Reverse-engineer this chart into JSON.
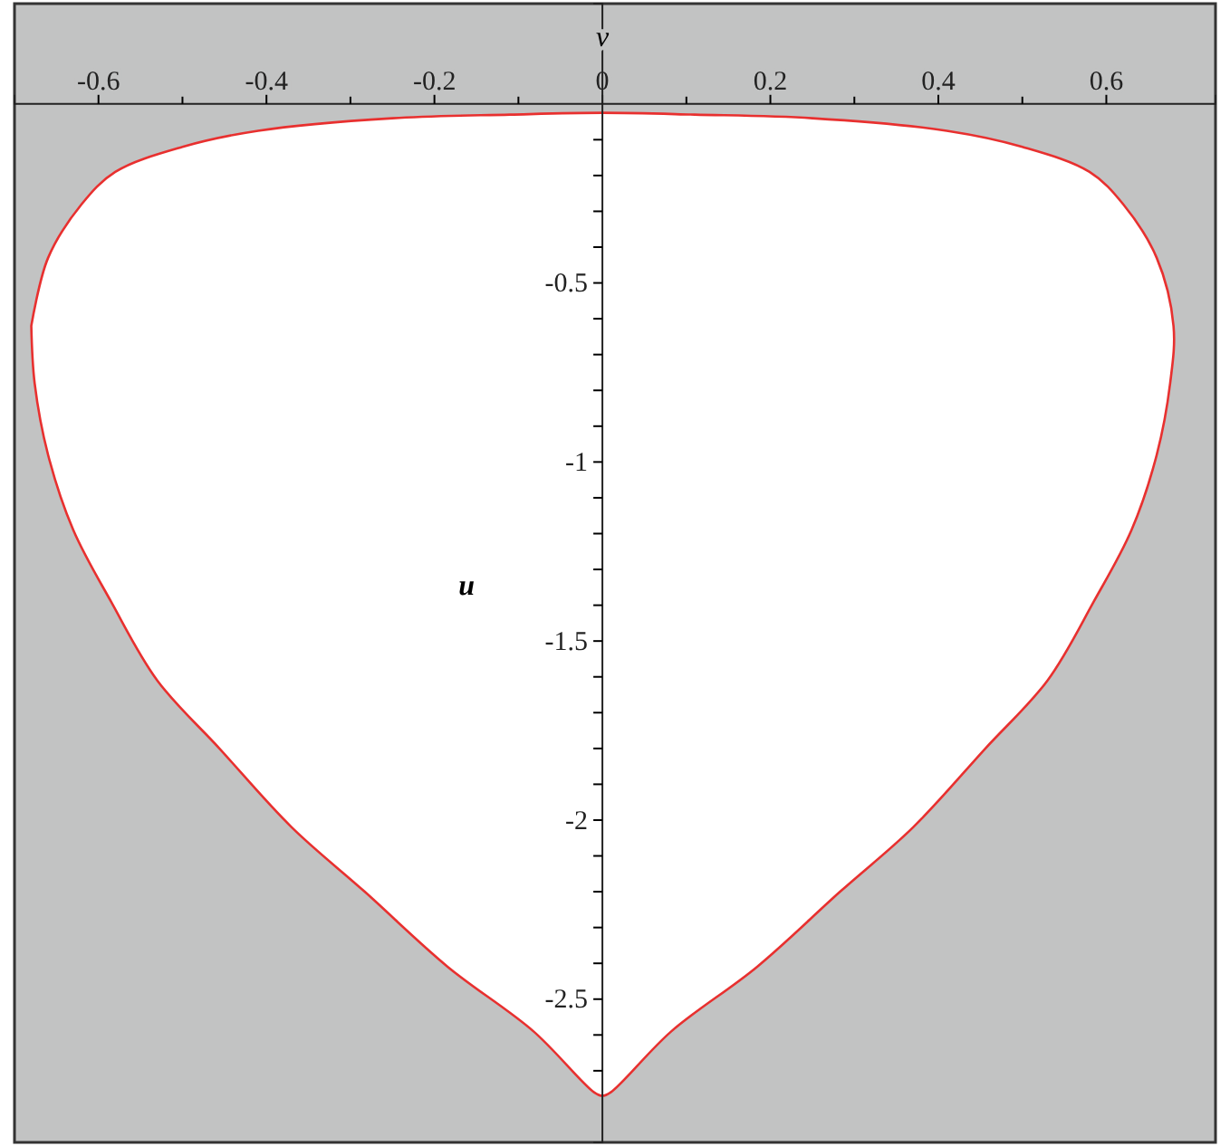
{
  "chart_data": {
    "type": "area",
    "xlabel": "v",
    "ylabel": "u",
    "xlim": [
      -0.7,
      0.73
    ],
    "ylim": [
      -2.9,
      0.28
    ],
    "xticks": [
      -0.6,
      {
        "value": -0.5,
        "label": null
      },
      -0.4,
      {
        "value": -0.3,
        "label": null
      },
      -0.2,
      {
        "value": -0.1,
        "label": null
      },
      0,
      {
        "value": 0.1,
        "label": null
      },
      0.2,
      {
        "value": 0.3,
        "label": null
      },
      0.4,
      {
        "value": 0.5,
        "label": null
      },
      0.6
    ],
    "yticks": [
      {
        "value": -0.1,
        "label": null
      },
      {
        "value": -0.2,
        "label": null
      },
      {
        "value": -0.3,
        "label": null
      },
      {
        "value": -0.4,
        "label": null
      },
      -0.5,
      {
        "value": -0.6,
        "label": null
      },
      {
        "value": -0.7,
        "label": null
      },
      {
        "value": -0.8,
        "label": null
      },
      {
        "value": -0.9,
        "label": null
      },
      -1,
      {
        "value": -1.1,
        "label": null
      },
      {
        "value": -1.2,
        "label": null
      },
      {
        "value": -1.3,
        "label": null
      },
      {
        "value": -1.4,
        "label": null
      },
      -1.5,
      {
        "value": -1.6,
        "label": null
      },
      {
        "value": -1.7,
        "label": null
      },
      {
        "value": -1.8,
        "label": null
      },
      {
        "value": -1.9,
        "label": null
      },
      -2,
      {
        "value": -2.1,
        "label": null
      },
      {
        "value": -2.2,
        "label": null
      },
      {
        "value": -2.3,
        "label": null
      },
      {
        "value": -2.4,
        "label": null
      },
      -2.5,
      {
        "value": -2.6,
        "label": null
      },
      {
        "value": -2.7,
        "label": null
      }
    ],
    "series": [
      {
        "color": "#e8302f",
        "x": [
          -0.68,
          -0.66,
          -0.62,
          -0.58,
          -0.5,
          -0.41,
          -0.25,
          -0.11,
          0,
          0.11,
          0.25,
          0.41,
          0.5,
          0.58,
          0.62,
          0.66,
          0.68,
          0.676,
          0.66,
          0.63,
          0.585,
          0.53,
          0.456,
          0.37,
          0.283,
          0.184,
          0.082,
          0.01,
          0,
          -0.01,
          -0.082,
          -0.184,
          -0.283,
          -0.37,
          -0.456,
          -0.53,
          -0.585,
          -0.63,
          -0.66,
          -0.676,
          -0.68
        ],
        "values": [
          -0.62,
          -0.43,
          -0.28,
          -0.19,
          -0.12,
          -0.075,
          -0.04,
          -0.03,
          -0.025,
          -0.03,
          -0.04,
          -0.075,
          -0.12,
          -0.19,
          -0.28,
          -0.43,
          -0.62,
          -0.78,
          -0.98,
          -1.19,
          -1.39,
          -1.61,
          -1.8,
          -2.02,
          -2.2,
          -2.41,
          -2.59,
          -2.76,
          -2.77,
          -2.76,
          -2.59,
          -2.41,
          -2.2,
          -2.02,
          -1.8,
          -1.61,
          -1.39,
          -1.19,
          -0.98,
          -0.78,
          -0.62
        ]
      }
    ]
  }
}
